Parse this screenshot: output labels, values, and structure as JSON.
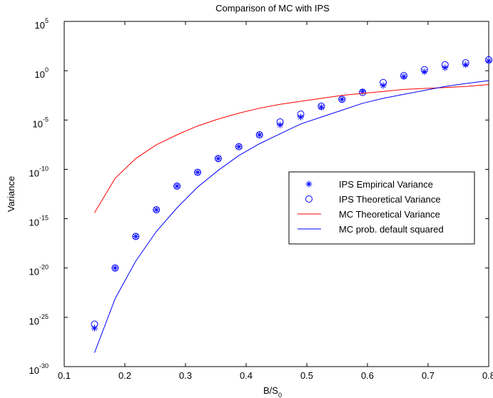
{
  "chart_data": {
    "type": "scatter",
    "title": "Comparison of MC with IPS",
    "xlabel": "B/S",
    "xlabel_sub": "0",
    "ylabel": "Variance",
    "xlim": [
      0.1,
      0.8
    ],
    "ylim_exp": [
      -30,
      5
    ],
    "yscale": "log",
    "xticks": [
      "0.1",
      "0.2",
      "0.3",
      "0.4",
      "0.5",
      "0.6",
      "0.7",
      "0.8"
    ],
    "yticks_exp": [
      "5",
      "0",
      "-5",
      "-10",
      "-15",
      "-20",
      "-25",
      "-30"
    ],
    "grid": false,
    "legend_position": "right-middle",
    "x": [
      0.15,
      0.184,
      0.218,
      0.252,
      0.286,
      0.32,
      0.354,
      0.388,
      0.422,
      0.456,
      0.49,
      0.524,
      0.558,
      0.592,
      0.626,
      0.66,
      0.694,
      0.728,
      0.762,
      0.8
    ],
    "series": [
      {
        "name": "IPS Empirical Variance",
        "marker": "asterisk",
        "color": "#0000ff",
        "log10_values": [
          -26.1,
          -20.0,
          -16.8,
          -14.1,
          -11.7,
          -10.3,
          -8.9,
          -7.7,
          -6.5,
          -5.5,
          -4.7,
          -3.7,
          -2.9,
          -2.1,
          -1.5,
          -0.6,
          -0.1,
          0.3,
          0.6,
          1.0
        ]
      },
      {
        "name": "IPS Theoretical Variance",
        "marker": "circle",
        "color": "#0000ff",
        "log10_values": [
          -25.7,
          -20.0,
          -16.8,
          -14.1,
          -11.7,
          -10.3,
          -8.9,
          -7.7,
          -6.5,
          -5.2,
          -4.4,
          -3.6,
          -2.9,
          -2.2,
          -1.2,
          -0.5,
          0.1,
          0.6,
          0.8,
          1.1
        ]
      },
      {
        "name": "MC Theoretical Variance",
        "marker": "line",
        "color": "#ff0000",
        "log10_values": [
          -14.4,
          -10.9,
          -8.9,
          -7.5,
          -6.5,
          -5.6,
          -4.9,
          -4.3,
          -3.8,
          -3.4,
          -3.1,
          -2.8,
          -2.5,
          -2.3,
          -2.1,
          -1.9,
          -1.8,
          -1.7,
          -1.6,
          -1.4
        ]
      },
      {
        "name": "MC prob. default squared",
        "marker": "line",
        "color": "#0000ff",
        "log10_values": [
          -28.6,
          -23.1,
          -19.3,
          -16.3,
          -13.9,
          -11.8,
          -10.1,
          -8.6,
          -7.4,
          -6.4,
          -5.4,
          -4.7,
          -4.0,
          -3.3,
          -2.8,
          -2.4,
          -2.0,
          -1.6,
          -1.3,
          -1.0
        ]
      }
    ]
  }
}
